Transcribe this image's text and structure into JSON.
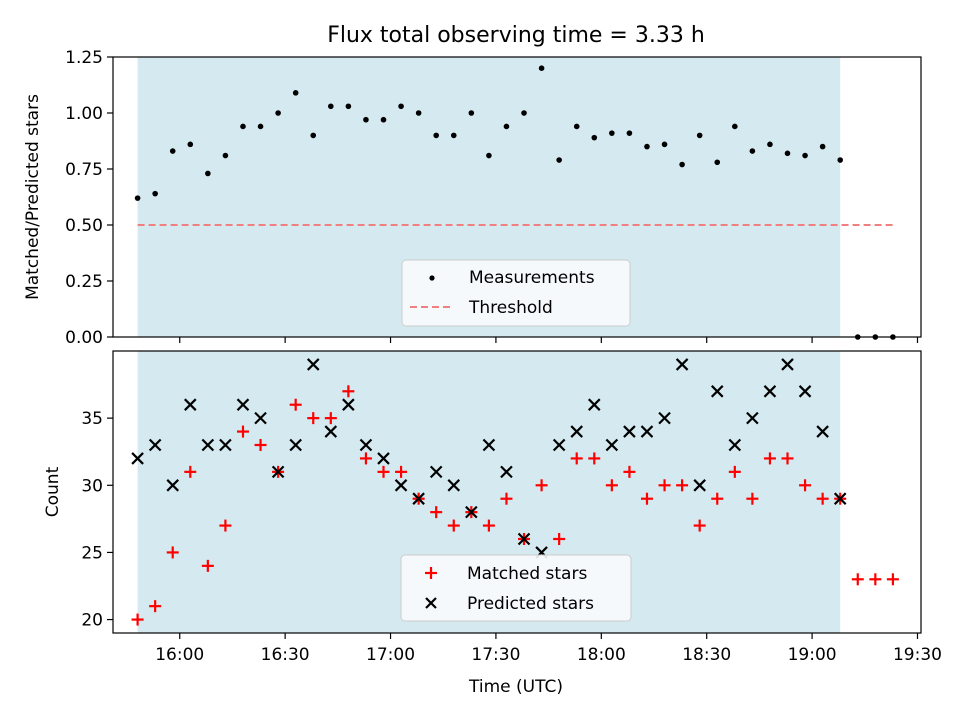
{
  "figure": {
    "title": "Flux total observing time = 3.33 h"
  },
  "chart_data": [
    {
      "type": "scatter",
      "panel": "top",
      "ylabel": "Matched/Predicted stars",
      "ylim": [
        0.0,
        1.25
      ],
      "yticks": [
        0.0,
        0.25,
        0.5,
        0.75,
        1.0,
        1.25
      ],
      "ytick_labels": [
        "0.00",
        "0.25",
        "0.50",
        "0.75",
        "1.00",
        "1.25"
      ],
      "shaded_interval": [
        "15:48",
        "19:08"
      ],
      "shade_color": "#d4eaf0",
      "legend_position": "lower center",
      "series": [
        {
          "name": "Measurements",
          "marker": "dot",
          "color": "#000000",
          "x": [
            "15:48",
            "15:53",
            "15:58",
            "16:03",
            "16:08",
            "16:13",
            "16:18",
            "16:23",
            "16:28",
            "16:33",
            "16:38",
            "16:43",
            "16:48",
            "16:53",
            "16:58",
            "17:03",
            "17:08",
            "17:13",
            "17:18",
            "17:23",
            "17:28",
            "17:33",
            "17:38",
            "17:43",
            "17:48",
            "17:53",
            "17:58",
            "18:03",
            "18:08",
            "18:13",
            "18:18",
            "18:23",
            "18:28",
            "18:33",
            "18:38",
            "18:43",
            "18:48",
            "18:53",
            "18:58",
            "19:03",
            "19:08",
            "19:13",
            "19:18",
            "19:23"
          ],
          "y": [
            0.62,
            0.64,
            0.83,
            0.86,
            0.73,
            0.81,
            0.94,
            0.94,
            1.0,
            1.09,
            0.9,
            1.03,
            1.03,
            0.97,
            0.97,
            1.03,
            1.0,
            0.9,
            0.9,
            1.0,
            0.81,
            0.94,
            1.0,
            1.2,
            0.79,
            0.94,
            0.89,
            0.91,
            0.91,
            0.85,
            0.86,
            0.77,
            0.9,
            0.78,
            0.94,
            0.83,
            0.86,
            0.82,
            0.81,
            0.85,
            0.79,
            0.0,
            0.0,
            0.0
          ]
        },
        {
          "name": "Threshold",
          "style": "dashed",
          "color": "#f08080",
          "x": [
            "15:48",
            "19:23"
          ],
          "y": [
            0.5,
            0.5
          ]
        }
      ]
    },
    {
      "type": "scatter",
      "panel": "bottom",
      "xlabel": "Time (UTC)",
      "ylabel": "Count",
      "ylim": [
        19,
        40
      ],
      "xlim": [
        "15:41",
        "19:31"
      ],
      "yticks": [
        20,
        25,
        30,
        35
      ],
      "xticks": [
        "16:00",
        "16:30",
        "17:00",
        "17:30",
        "18:00",
        "18:30",
        "19:00",
        "19:30"
      ],
      "shaded_interval": [
        "15:48",
        "19:08"
      ],
      "shade_color": "#d4eaf0",
      "legend_position": "lower center",
      "series": [
        {
          "name": "Matched stars",
          "marker": "plus",
          "color": "#ff0000",
          "x": [
            "15:48",
            "15:53",
            "15:58",
            "16:03",
            "16:08",
            "16:13",
            "16:18",
            "16:23",
            "16:28",
            "16:33",
            "16:38",
            "16:43",
            "16:48",
            "16:53",
            "16:58",
            "17:03",
            "17:08",
            "17:13",
            "17:18",
            "17:23",
            "17:28",
            "17:33",
            "17:38",
            "17:43",
            "17:48",
            "17:53",
            "17:58",
            "18:03",
            "18:08",
            "18:13",
            "18:18",
            "18:23",
            "18:28",
            "18:33",
            "18:38",
            "18:43",
            "18:48",
            "18:53",
            "18:58",
            "19:03",
            "19:08",
            "19:13",
            "19:18",
            "19:23"
          ],
          "y": [
            20,
            21,
            25,
            31,
            24,
            27,
            34,
            33,
            31,
            36,
            35,
            35,
            37,
            32,
            31,
            31,
            29,
            28,
            27,
            28,
            27,
            29,
            26,
            30,
            26,
            32,
            32,
            30,
            31,
            29,
            30,
            30,
            27,
            29,
            31,
            29,
            32,
            32,
            30,
            29,
            29,
            23,
            23,
            23
          ]
        },
        {
          "name": "Predicted stars",
          "marker": "x",
          "color": "#000000",
          "x": [
            "15:48",
            "15:53",
            "15:58",
            "16:03",
            "16:08",
            "16:13",
            "16:18",
            "16:23",
            "16:28",
            "16:33",
            "16:38",
            "16:43",
            "16:48",
            "16:53",
            "16:58",
            "17:03",
            "17:08",
            "17:13",
            "17:18",
            "17:23",
            "17:28",
            "17:33",
            "17:38",
            "17:43",
            "17:48",
            "17:53",
            "17:58",
            "18:03",
            "18:08",
            "18:13",
            "18:18",
            "18:23",
            "18:28",
            "18:33",
            "18:38",
            "18:43",
            "18:48",
            "18:53",
            "18:58",
            "19:03",
            "19:08"
          ],
          "y": [
            32,
            33,
            30,
            36,
            33,
            33,
            36,
            35,
            31,
            33,
            39,
            34,
            36,
            33,
            32,
            30,
            29,
            31,
            30,
            28,
            33,
            31,
            26,
            25,
            33,
            34,
            36,
            33,
            34,
            34,
            35,
            39,
            30,
            37,
            33,
            35,
            37,
            39,
            37,
            34,
            29
          ]
        }
      ]
    }
  ]
}
